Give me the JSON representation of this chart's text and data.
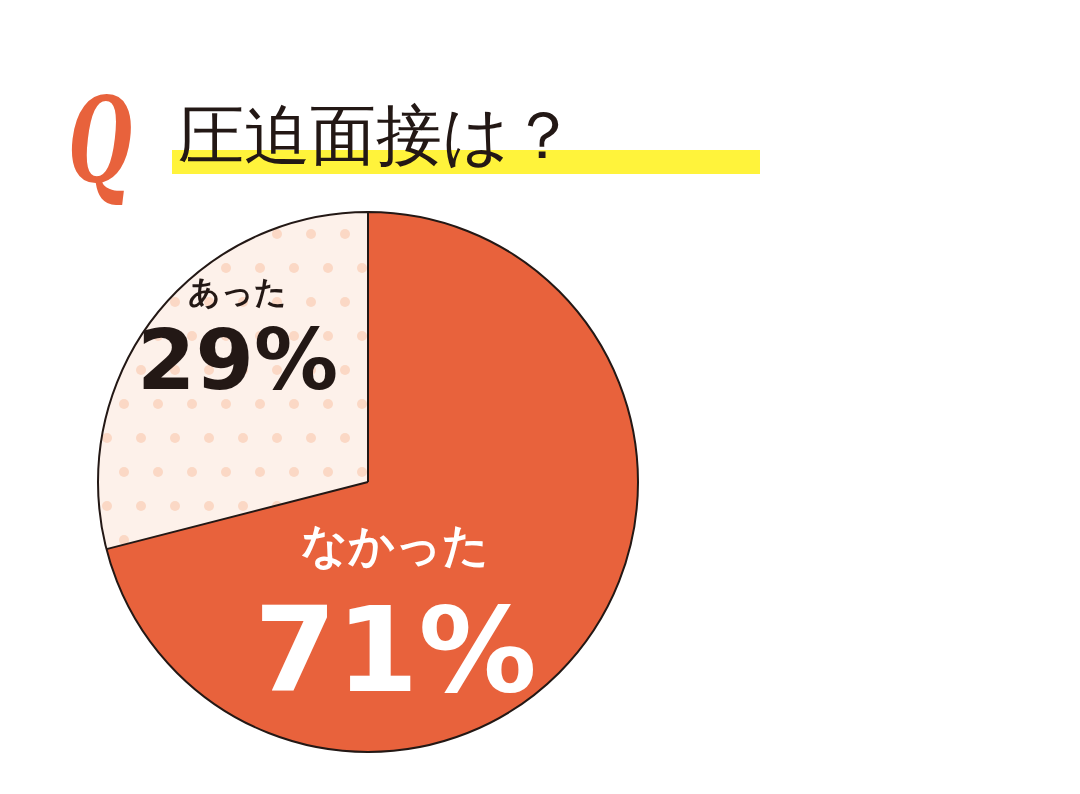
{
  "chart_data": {
    "type": "pie",
    "title": "圧迫面接は？",
    "annotations": [
      "Q"
    ],
    "categories": [
      "なかった",
      "あった"
    ],
    "values": [
      71,
      29
    ],
    "value_labels": [
      "71%",
      "29%"
    ],
    "colors": [
      "#e8623c",
      "#fdf1ea"
    ],
    "legend": false
  }
}
